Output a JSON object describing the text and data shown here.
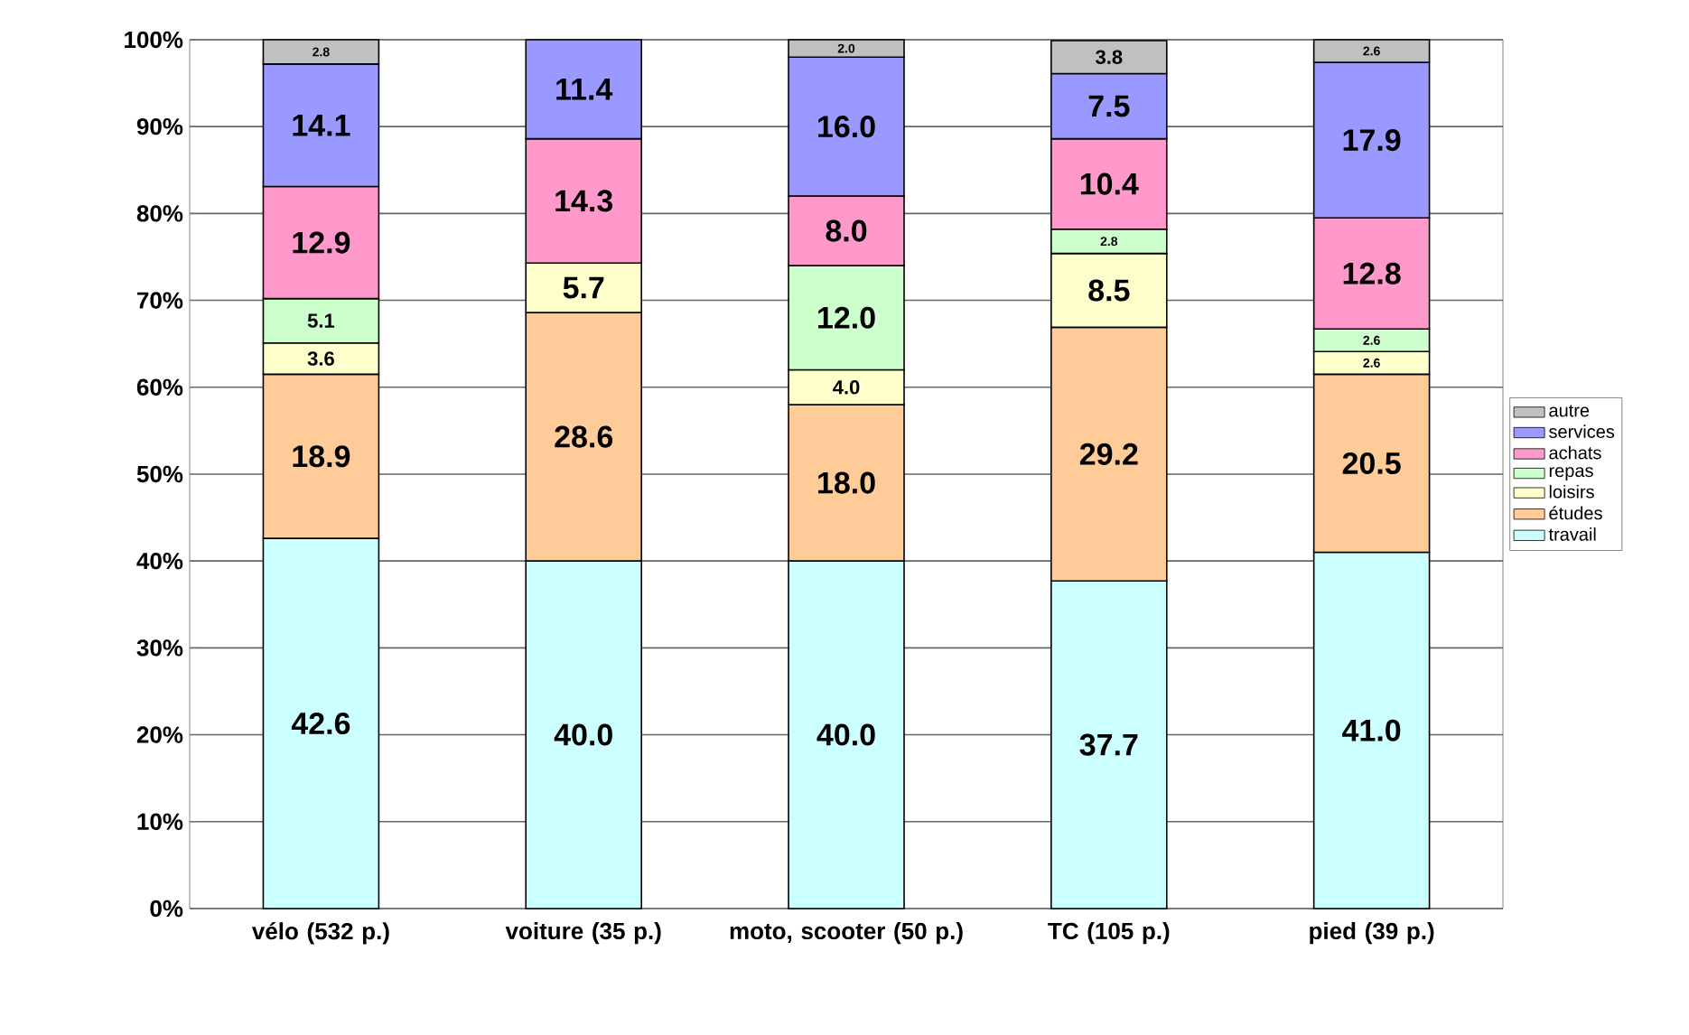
{
  "chart_data": {
    "type": "bar",
    "stacked": true,
    "categories": [
      "vélo (532 p.)",
      "voiture (35 p.)",
      "moto, scooter (50 p.)",
      "TC (105 p.)",
      "pied (39 p.)"
    ],
    "series": [
      {
        "name": "travail",
        "color": "#ccffff",
        "values": [
          42.6,
          40.0,
          40.0,
          37.7,
          41.0
        ],
        "value_labels": [
          "42.6",
          "40.0",
          "40.0",
          "37.7",
          "41.0"
        ]
      },
      {
        "name": "études",
        "color": "#ffcc99",
        "values": [
          18.9,
          28.6,
          18.0,
          29.2,
          20.5
        ],
        "value_labels": [
          "18.9",
          "28.6",
          "18.0",
          "29.2",
          "20.5"
        ]
      },
      {
        "name": "loisirs",
        "color": "#ffffcc",
        "values": [
          3.6,
          5.7,
          4.0,
          8.5,
          2.6
        ],
        "value_labels": [
          "3.6",
          "5.7",
          "4.0",
          "8.5",
          "2.6"
        ]
      },
      {
        "name": "repas",
        "color": "#ccffcc",
        "values": [
          5.1,
          null,
          12.0,
          2.8,
          2.6
        ],
        "value_labels": [
          "5.1",
          null,
          "12.0",
          "2.8",
          "2.6"
        ]
      },
      {
        "name": "achats",
        "color": "#ff99cc",
        "values": [
          12.9,
          14.3,
          8.0,
          10.4,
          12.8
        ],
        "value_labels": [
          "12.9",
          "14.3",
          "8.0",
          "10.4",
          "12.8"
        ]
      },
      {
        "name": "services",
        "color": "#9999ff",
        "values": [
          14.1,
          11.4,
          16.0,
          7.5,
          17.9
        ],
        "value_labels": [
          "14.1",
          "11.4",
          "16.0",
          "7.5",
          "17.9"
        ]
      },
      {
        "name": "autre",
        "color": "#c0c0c0",
        "values": [
          2.8,
          null,
          2.0,
          3.8,
          2.6
        ],
        "value_labels": [
          "2.8",
          null,
          "2.0",
          "3.8",
          "2.6"
        ]
      }
    ],
    "ylim": [
      0,
      100
    ],
    "yticks": [
      {
        "value": 0,
        "label": "0%"
      },
      {
        "value": 10,
        "label": "10%"
      },
      {
        "value": 20,
        "label": "20%"
      },
      {
        "value": 30,
        "label": "30%"
      },
      {
        "value": 40,
        "label": "40%"
      },
      {
        "value": 50,
        "label": "50%"
      },
      {
        "value": 60,
        "label": "60%"
      },
      {
        "value": 70,
        "label": "70%"
      },
      {
        "value": 80,
        "label": "80%"
      },
      {
        "value": 90,
        "label": "90%"
      },
      {
        "value": 100,
        "label": "100%"
      }
    ],
    "grid": "y",
    "legend": "right"
  }
}
